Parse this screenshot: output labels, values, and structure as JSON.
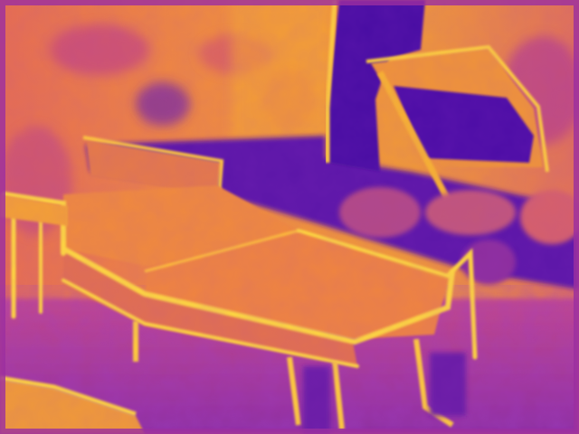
{
  "image": {
    "palette": {
      "bright": "#ffd23a",
      "hot": "#f6a12d",
      "warm": "#ef8140",
      "mid": "#d8596a",
      "cool": "#a23a9a",
      "deep": "#5a10a8",
      "darkest": "#3d0a9c"
    }
  }
}
